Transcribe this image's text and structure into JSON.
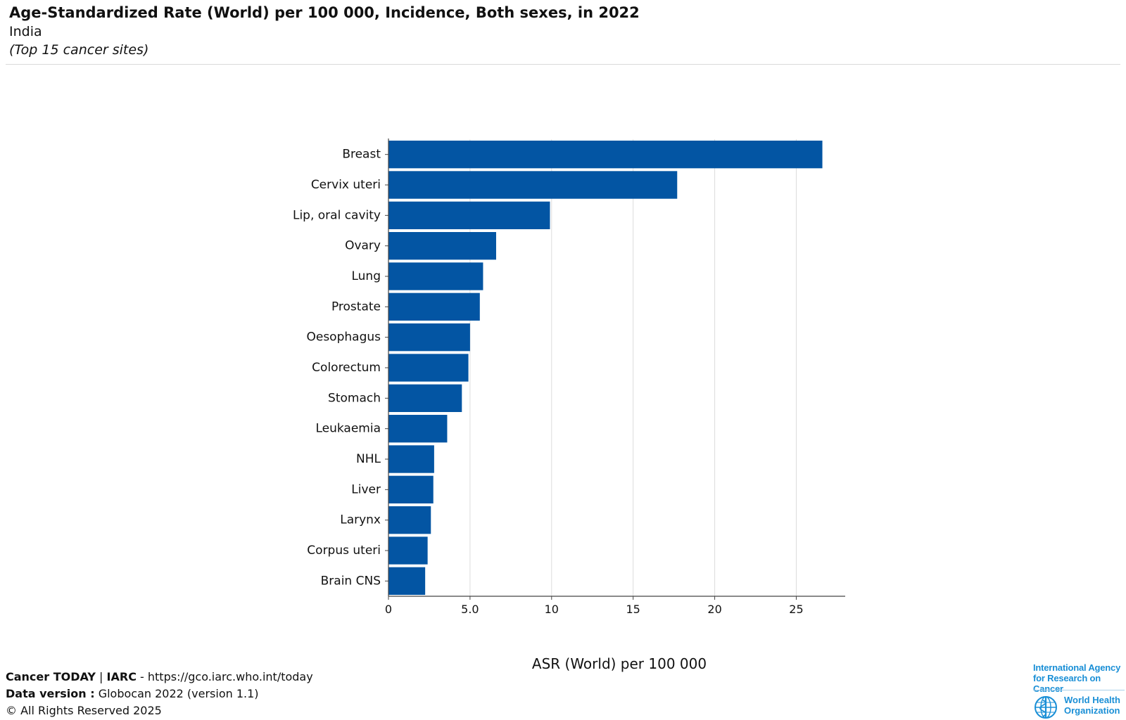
{
  "header": {
    "title": "Age-Standardized Rate (World) per 100 000, Incidence, Both sexes, in 2022",
    "subtitle": "India",
    "note": "(Top 15 cancer sites)"
  },
  "chart_data": {
    "type": "bar",
    "orientation": "horizontal",
    "title": "Age-Standardized Rate (World) per 100 000, Incidence, Both sexes, in 2022",
    "subtitle": "India",
    "xlabel": "ASR (World) per 100 000",
    "ylabel": "",
    "xlim": [
      0,
      28
    ],
    "xticks": [
      0,
      5,
      10,
      15,
      20,
      25
    ],
    "xtick_labels": [
      "0",
      "5.0",
      "10",
      "15",
      "20",
      "25"
    ],
    "grid": "vertical",
    "legend": "none",
    "bar_color": "#0355a3",
    "categories": [
      "Breast",
      "Cervix uteri",
      "Lip, oral cavity",
      "Ovary",
      "Lung",
      "Prostate",
      "Oesophagus",
      "Colorectum",
      "Stomach",
      "Leukaemia",
      "NHL",
      "Liver",
      "Larynx",
      "Corpus uteri",
      "Brain CNS"
    ],
    "values": [
      26.6,
      17.7,
      9.9,
      6.6,
      5.8,
      5.6,
      5.0,
      4.9,
      4.5,
      3.6,
      2.8,
      2.75,
      2.6,
      2.4,
      2.25
    ]
  },
  "footer": {
    "source_brand": "Cancer TODAY",
    "separator": " | ",
    "source_org": "IARC",
    "source_url": " - https://gco.iarc.who.int/today",
    "version_label": "Data version :",
    "version_value": " Globocan 2022 (version 1.1)",
    "copyright": "© All Rights Reserved 2025"
  },
  "logos": {
    "iarc_line1": "International Agency",
    "iarc_line2": "for Research on Cancer",
    "who_line1": "World Health",
    "who_line2": "Organization",
    "iarc_color": "#1a8fd6",
    "who_emblem_icon": "who-emblem-icon"
  }
}
